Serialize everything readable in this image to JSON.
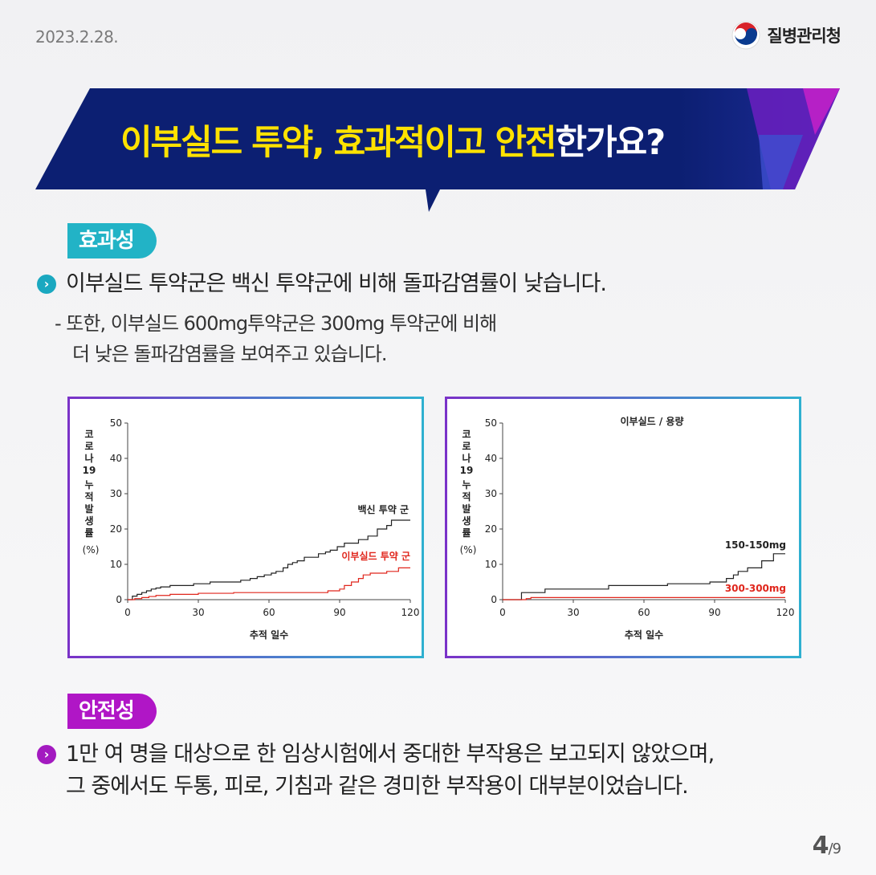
{
  "header": {
    "date": "2023.2.28.",
    "org": "질병관리청"
  },
  "banner": {
    "title_yellow": "이부실드 투약, 효과적이고 안전",
    "title_white": "한가요?"
  },
  "efficacy": {
    "tag": "효과성",
    "bullet_icon": "chevron-right-icon",
    "point": "이부실드 투약군은 백신 투약군에 비해 돌파감염률이 낮습니다.",
    "sub_line1": "- 또한, 이부실드 600mg투약군은 300mg 투약군에 비해",
    "sub_line2": "더 낮은 돌파감염률을 보여주고 있습니다."
  },
  "safety": {
    "tag": "안전성",
    "point_line1": "1만 여 명을 대상으로 한 임상시험에서 중대한 부작용은 보고되지 않았으며,",
    "point_line2": "그 중에서도 두통, 피로, 기침과 같은 경미한 부작용이 대부분이었습니다."
  },
  "page": {
    "current": "4",
    "total": "/9"
  },
  "colors": {
    "navy": "#0c1f72",
    "yellow": "#ffe200",
    "teal": "#22b3c6",
    "purple": "#b016c6",
    "red": "#e0261c",
    "black": "#222222"
  },
  "chart_data": [
    {
      "type": "line",
      "step": true,
      "title": "",
      "xlabel": "추적 일수",
      "ylabel": [
        "코",
        "로",
        "나",
        "19",
        "누",
        "적",
        "발",
        "생",
        "률",
        "(%)"
      ],
      "xlim": [
        0,
        120
      ],
      "ylim": [
        0,
        50
      ],
      "xticks": [
        "0",
        "30",
        "60",
        "90",
        "120"
      ],
      "yticks": [
        "0",
        "10",
        "20",
        "30",
        "40",
        "50"
      ],
      "series": [
        {
          "name": "백신 투약 군",
          "color": "#222222",
          "x": [
            0,
            2,
            4,
            6,
            8,
            10,
            12,
            14,
            18,
            28,
            35,
            42,
            48,
            52,
            55,
            58,
            61,
            63,
            66,
            68,
            70,
            72,
            75,
            78,
            81,
            84,
            86,
            89,
            92,
            95,
            98,
            102,
            106,
            110,
            112,
            120
          ],
          "values": [
            0,
            1,
            1.5,
            2,
            2.5,
            3,
            3.3,
            3.6,
            4,
            4.5,
            5,
            5,
            5.5,
            6,
            6.5,
            7,
            7.5,
            8,
            9,
            10,
            10.5,
            11,
            12,
            12,
            13,
            13.5,
            14,
            15,
            16,
            16,
            17,
            18,
            20,
            21,
            22.5,
            22.5
          ]
        },
        {
          "name": "이부실드 투약 군",
          "color": "#e0261c",
          "x": [
            0,
            3,
            6,
            9,
            12,
            18,
            30,
            45,
            60,
            72,
            80,
            85,
            90,
            92,
            95,
            98,
            100,
            103,
            110,
            115,
            120
          ],
          "values": [
            0,
            0.3,
            0.6,
            0.9,
            1.2,
            1.5,
            1.8,
            2,
            2,
            2,
            2,
            2.5,
            3,
            4,
            5,
            6,
            7,
            7.5,
            8,
            9,
            9
          ]
        }
      ]
    },
    {
      "type": "line",
      "step": true,
      "title": "이부실드 / 용량",
      "xlabel": "추적 일수",
      "ylabel": [
        "코",
        "로",
        "나",
        "19",
        "누",
        "적",
        "발",
        "생",
        "률",
        "(%)"
      ],
      "xlim": [
        0,
        120
      ],
      "ylim": [
        0,
        50
      ],
      "xticks": [
        "0",
        "30",
        "60",
        "90",
        "120"
      ],
      "yticks": [
        "0",
        "10",
        "20",
        "30",
        "40",
        "50"
      ],
      "series": [
        {
          "name": "150-150mg",
          "color": "#222222",
          "x": [
            0,
            8,
            18,
            45,
            70,
            82,
            88,
            95,
            98,
            100,
            104,
            110,
            115,
            120
          ],
          "values": [
            0,
            2,
            3,
            4,
            4.5,
            4.5,
            5,
            6,
            7,
            8,
            9,
            11,
            13,
            13
          ]
        },
        {
          "name": "300-300mg",
          "color": "#e0261c",
          "x": [
            0,
            10,
            12,
            120
          ],
          "values": [
            0,
            0.3,
            0.6,
            0.6
          ]
        }
      ]
    }
  ]
}
